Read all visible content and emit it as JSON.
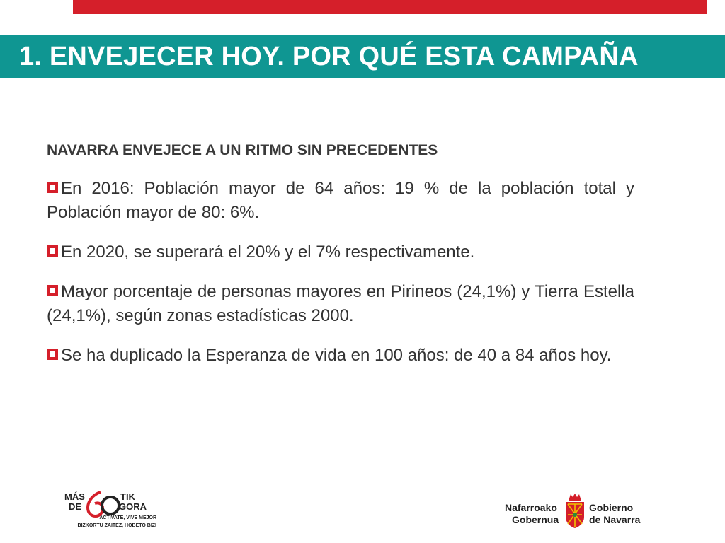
{
  "header": {
    "title": "1. ENVEJECER HOY. POR QUÉ ESTA CAMPAÑA",
    "stripe_color": "#d51f2a",
    "bar_color": "#0f9692"
  },
  "content": {
    "subtitle": "NAVARRA ENVEJECE A UN RITMO SIN PRECEDENTES",
    "bullet_icon": "red-square-bullet-icon",
    "bullets": [
      "En 2016: Población mayor de 64 años: 19 % de la población total y Población mayor de 80: 6%.",
      "En 2020, se superará el 20% y el 7% respectivamente.",
      "Mayor porcentaje de personas mayores en Pirineos (24,1%) y Tierra Estella (24,1%), según zonas estadísticas 2000.",
      "Se ha duplicado la Esperanza de vida en 100 años: de 40 a 84 años hoy."
    ]
  },
  "footer": {
    "campaign_logo": {
      "mas": "MÁS",
      "de": "DE",
      "tik": "TIK",
      "gora": "GORA",
      "tagline_es": "ACTÍVATE, VIVE MEJOR",
      "tagline_eu": "BIZKORTU ZAITEZ, HOBETO BIZI"
    },
    "government_logo": {
      "basque_line1": "Nafarroako",
      "basque_line2": "Gobernua",
      "spanish_line1": "Gobierno",
      "spanish_line2": "de Navarra"
    }
  }
}
